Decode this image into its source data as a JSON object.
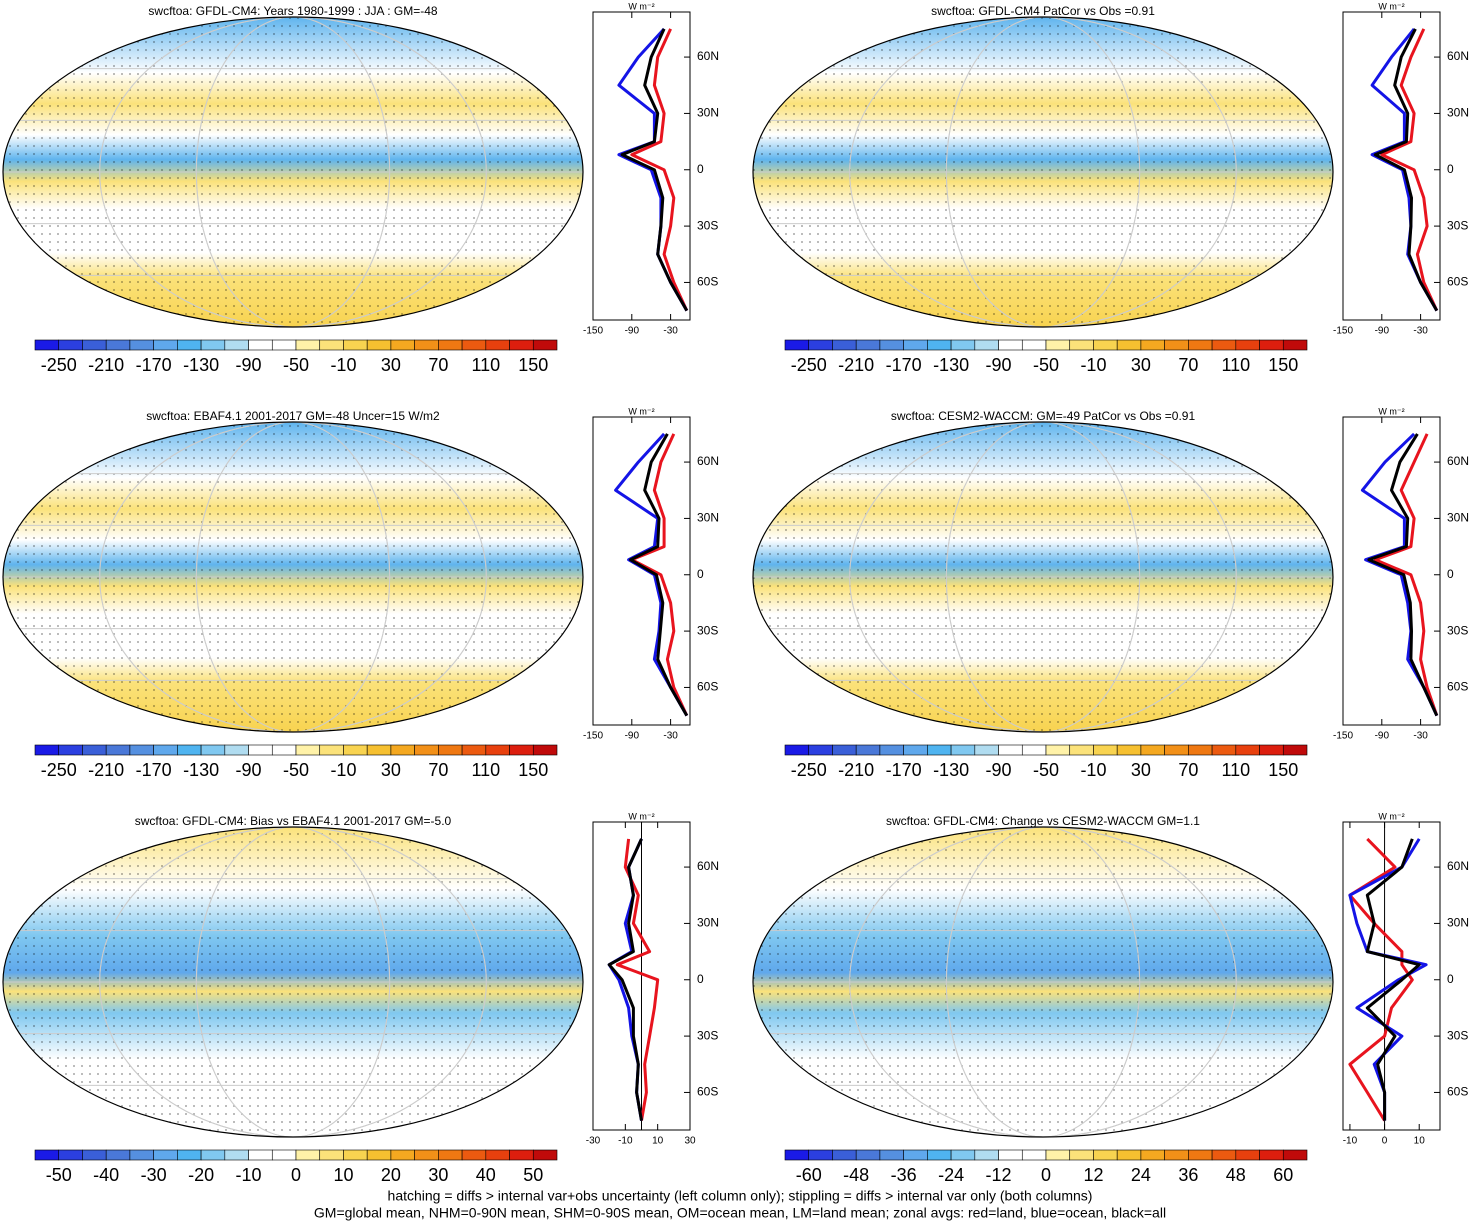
{
  "colormap": [
    "#1a1ae6",
    "#2b3fe0",
    "#3a5fd8",
    "#4a78d8",
    "#5590e0",
    "#5fa8ec",
    "#4fb4f0",
    "#80c8f0",
    "#b0dcf0",
    "#ffffff",
    "#ffffff",
    "#fff2a8",
    "#fbe27a",
    "#f8d350",
    "#f6c030",
    "#f4a820",
    "#f29018",
    "#ef7812",
    "#ec5a10",
    "#e8400e",
    "#dc1e0e",
    "#c00a0a"
  ],
  "chart_data": [
    {
      "type": "map",
      "title": "swcftoa: GFDL-CM4: Years 1980-1999 : JJA : GM=-48",
      "colorbar": {
        "lim": [
          -270,
          170
        ],
        "ticks": [
          -250,
          -210,
          -170,
          -130,
          -90,
          -50,
          -10,
          30,
          70,
          110,
          150
        ]
      }
    },
    {
      "type": "line",
      "xlabel": "W m⁻²",
      "xlim": [
        -150,
        0
      ],
      "xticks": [
        -150,
        -90,
        -30
      ],
      "ylim": [
        -80,
        84
      ],
      "yticks": [
        {
          "value": -60,
          "label": "60S"
        },
        {
          "value": -30,
          "label": "30S"
        },
        0,
        {
          "value": 30,
          "label": "30N"
        },
        {
          "value": 60,
          "label": "60N"
        }
      ],
      "lat": [
        -75,
        -60,
        -45,
        -30,
        -15,
        0,
        8,
        15,
        30,
        45,
        60,
        75
      ],
      "series": [
        {
          "color": "#e8141e",
          "values": [
            -5,
            -25,
            -40,
            -30,
            -25,
            -40,
            -90,
            -45,
            -40,
            -55,
            -50,
            -30
          ]
        },
        {
          "color": "#1414e6",
          "values": [
            -5,
            -30,
            -50,
            -45,
            -45,
            -60,
            -110,
            -55,
            -55,
            -110,
            -80,
            -40
          ]
        },
        {
          "color": "#000000",
          "values": [
            -5,
            -30,
            -50,
            -45,
            -42,
            -55,
            -105,
            -55,
            -50,
            -70,
            -60,
            -40
          ]
        }
      ]
    },
    {
      "type": "map",
      "title": "swcftoa: GFDL-CM4 PatCor vs Obs =0.91",
      "colorbar": {
        "lim": [
          -270,
          170
        ],
        "ticks": [
          -250,
          -210,
          -170,
          -130,
          -90,
          -50,
          -10,
          30,
          70,
          110,
          150
        ]
      }
    },
    {
      "type": "line",
      "xlabel": "W m⁻²",
      "xlim": [
        -150,
        0
      ],
      "xticks": [
        -150,
        -90,
        -30
      ],
      "ylim": [
        -80,
        84
      ],
      "yticks": [
        {
          "value": -60,
          "label": "60S"
        },
        {
          "value": -30,
          "label": "30S"
        },
        0,
        {
          "value": 30,
          "label": "30N"
        },
        {
          "value": 60,
          "label": "60N"
        }
      ],
      "lat": [
        -75,
        -60,
        -45,
        -30,
        -15,
        0,
        8,
        15,
        30,
        45,
        60,
        75
      ],
      "series": [
        {
          "color": "#e8141e",
          "values": [
            -5,
            -25,
            -35,
            -20,
            -25,
            -40,
            -90,
            -45,
            -40,
            -60,
            -45,
            -25
          ]
        },
        {
          "color": "#1414e6",
          "values": [
            -5,
            -30,
            -50,
            -45,
            -48,
            -58,
            -105,
            -55,
            -55,
            -105,
            -75,
            -40
          ]
        },
        {
          "color": "#000000",
          "values": [
            -5,
            -30,
            -48,
            -45,
            -44,
            -55,
            -100,
            -52,
            -50,
            -70,
            -60,
            -38
          ]
        }
      ]
    },
    {
      "type": "map",
      "title": "swcftoa: EBAF4.1 2001-2017 GM=-48 Uncer=15 W/m2",
      "colorbar": {
        "lim": [
          -270,
          170
        ],
        "ticks": [
          -250,
          -210,
          -170,
          -130,
          -90,
          -50,
          -10,
          30,
          70,
          110,
          150
        ]
      }
    },
    {
      "type": "line",
      "xlabel": "W m⁻²",
      "xlim": [
        -150,
        0
      ],
      "xticks": [
        -150,
        -90,
        -30
      ],
      "ylim": [
        -80,
        84
      ],
      "yticks": [
        {
          "value": -60,
          "label": "60S"
        },
        {
          "value": -30,
          "label": "30S"
        },
        0,
        {
          "value": 30,
          "label": "30N"
        },
        {
          "value": 60,
          "label": "60N"
        }
      ],
      "lat": [
        -75,
        -60,
        -45,
        -30,
        -15,
        0,
        8,
        15,
        30,
        45,
        60,
        75
      ],
      "series": [
        {
          "color": "#e8141e",
          "values": [
            -5,
            -25,
            -35,
            -25,
            -30,
            -45,
            -90,
            -40,
            -40,
            -55,
            -45,
            -25
          ]
        },
        {
          "color": "#1414e6",
          "values": [
            -5,
            -30,
            -55,
            -48,
            -45,
            -55,
            -95,
            -55,
            -50,
            -115,
            -80,
            -40
          ]
        },
        {
          "color": "#000000",
          "values": [
            -5,
            -30,
            -50,
            -46,
            -42,
            -52,
            -92,
            -50,
            -48,
            -70,
            -60,
            -35
          ]
        }
      ]
    },
    {
      "type": "map",
      "title": "swcftoa: CESM2-WACCM: GM=-49 PatCor vs Obs =0.91",
      "colorbar": {
        "lim": [
          -270,
          170
        ],
        "ticks": [
          -250,
          -210,
          -170,
          -130,
          -90,
          -50,
          -10,
          30,
          70,
          110,
          150
        ]
      }
    },
    {
      "type": "line",
      "xlabel": "W m⁻²",
      "xlim": [
        -150,
        0
      ],
      "xticks": [
        -150,
        -90,
        -30
      ],
      "ylim": [
        -80,
        84
      ],
      "yticks": [
        {
          "value": -60,
          "label": "60S"
        },
        {
          "value": -30,
          "label": "30S"
        },
        0,
        {
          "value": 30,
          "label": "30N"
        },
        {
          "value": 60,
          "label": "60N"
        }
      ],
      "lat": [
        -75,
        -60,
        -45,
        -30,
        -15,
        0,
        8,
        15,
        30,
        45,
        60,
        75
      ],
      "series": [
        {
          "color": "#e8141e",
          "values": [
            -5,
            -20,
            -30,
            -25,
            -30,
            -45,
            -100,
            -45,
            -40,
            -60,
            -40,
            -20
          ]
        },
        {
          "color": "#1414e6",
          "values": [
            -5,
            -25,
            -50,
            -45,
            -50,
            -60,
            -115,
            -55,
            -55,
            -120,
            -85,
            -40
          ]
        },
        {
          "color": "#000000",
          "values": [
            -5,
            -25,
            -45,
            -44,
            -46,
            -56,
            -110,
            -52,
            -50,
            -75,
            -62,
            -35
          ]
        }
      ]
    },
    {
      "type": "map",
      "title": "swcftoa: GFDL-CM4: Bias vs EBAF4.1 2001-2017 GM=-5.0",
      "colorbar": {
        "lim": [
          -55,
          55
        ],
        "ticks": [
          -50,
          -40,
          -30,
          -20,
          -10,
          0,
          10,
          20,
          30,
          40,
          50
        ]
      }
    },
    {
      "type": "line",
      "xlabel": "W m⁻²",
      "xlim": [
        -30,
        30
      ],
      "xticks": [
        -30,
        -10,
        10,
        30
      ],
      "ylim": [
        -80,
        84
      ],
      "yticks": [
        {
          "value": -60,
          "label": "60S"
        },
        {
          "value": -30,
          "label": "30S"
        },
        0,
        {
          "value": 30,
          "label": "30N"
        },
        {
          "value": 60,
          "label": "60N"
        }
      ],
      "lat": [
        -75,
        -60,
        -45,
        -30,
        -15,
        0,
        8,
        15,
        30,
        45,
        60,
        75
      ],
      "series": [
        {
          "color": "#e8141e",
          "values": [
            0,
            3,
            2,
            5,
            8,
            10,
            -15,
            5,
            -5,
            -2,
            -10,
            -8
          ]
        },
        {
          "color": "#1414e6",
          "values": [
            0,
            -3,
            -2,
            -6,
            -8,
            -14,
            -20,
            -6,
            -10,
            -5,
            -8,
            0
          ]
        },
        {
          "color": "#000000",
          "values": [
            0,
            -3,
            -2,
            -5,
            -5,
            -12,
            -20,
            -5,
            -8,
            -5,
            -8,
            0
          ]
        }
      ]
    },
    {
      "type": "map",
      "title": "swcftoa: GFDL-CM4: Change vs CESM2-WACCM GM=1.1",
      "colorbar": {
        "lim": [
          -66,
          66
        ],
        "ticks": [
          -60,
          -48,
          -36,
          -24,
          -12,
          0,
          12,
          24,
          36,
          48,
          60
        ]
      }
    },
    {
      "type": "line",
      "xlabel": "W m⁻²",
      "xlim": [
        -12,
        16
      ],
      "xticks": [
        -10,
        0,
        10
      ],
      "ylim": [
        -80,
        84
      ],
      "yticks": [
        {
          "value": -60,
          "label": "60S"
        },
        {
          "value": -30,
          "label": "30S"
        },
        0,
        {
          "value": 30,
          "label": "30N"
        },
        {
          "value": 60,
          "label": "60N"
        }
      ],
      "lat": [
        -75,
        -60,
        -45,
        -30,
        -15,
        0,
        8,
        15,
        30,
        45,
        60,
        75
      ],
      "series": [
        {
          "color": "#e8141e",
          "values": [
            0,
            -5,
            -10,
            0,
            2,
            8,
            5,
            5,
            -3,
            -10,
            3,
            -5
          ]
        },
        {
          "color": "#1414e6",
          "values": [
            0,
            0,
            -3,
            5,
            -8,
            4,
            12,
            -5,
            -8,
            -10,
            5,
            10
          ]
        },
        {
          "color": "#000000",
          "values": [
            0,
            0,
            -2,
            3,
            -5,
            5,
            10,
            -5,
            -3,
            -5,
            5,
            8
          ]
        }
      ]
    }
  ],
  "footnote": [
    "hatching = diffs > internal var+obs uncertainty (left column only); stippling = diffs > internal var only (both columns)",
    "GM=global mean, NHM=0-90N mean, SHM=0-90S mean, OM=ocean mean, LM=land mean; zonal avgs: red=land, blue=ocean, black=all"
  ]
}
